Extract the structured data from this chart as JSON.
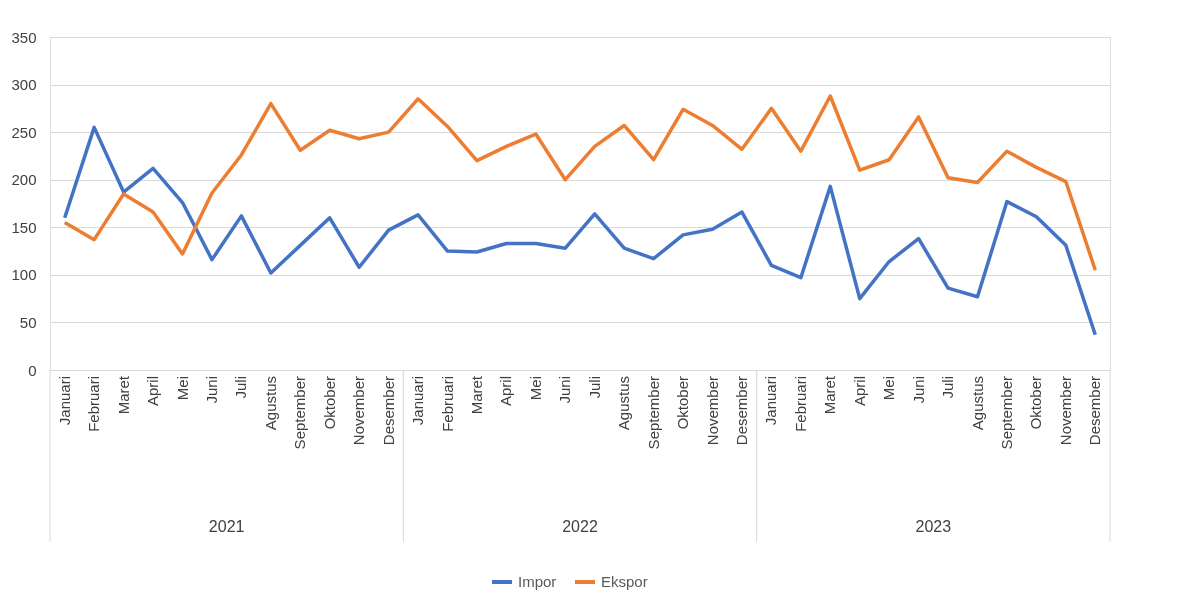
{
  "chart_data": {
    "type": "line",
    "categories": [
      "Januari",
      "Februari",
      "Maret",
      "April",
      "Mei",
      "Juni",
      "Juli",
      "Agustus",
      "September",
      "Oktober",
      "November",
      "Desember",
      "Januari",
      "Februari",
      "Maret",
      "April",
      "Mei",
      "Juni",
      "Juli",
      "Agustus",
      "September",
      "Oktober",
      "November",
      "Desember",
      "Januari",
      "Februari",
      "Maret",
      "April",
      "Mei",
      "Juni",
      "Juli",
      "Agustus",
      "September",
      "Oktober",
      "November",
      "Desember"
    ],
    "series": [
      {
        "name": "Impor",
        "color": "#4472c4",
        "values": [
          160,
          255,
          187,
          212,
          176,
          116,
          162,
          102,
          131,
          160,
          108,
          147,
          163,
          125,
          124,
          133,
          133,
          128,
          164,
          128,
          117,
          142,
          148,
          166,
          110,
          97,
          193,
          75,
          114,
          138,
          86,
          77,
          177,
          161,
          131,
          37
        ]
      },
      {
        "name": "Ekspor",
        "color": "#ed7d31",
        "values": [
          155,
          137,
          185,
          166,
          122,
          186,
          226,
          280,
          231,
          252,
          243,
          250,
          285,
          256,
          220,
          235,
          248,
          200,
          235,
          257,
          221,
          274,
          257,
          232,
          275,
          230,
          288,
          210,
          221,
          266,
          202,
          197,
          230,
          213,
          198,
          105
        ]
      }
    ],
    "annotations": [
      "2021",
      "2022",
      "2023"
    ],
    "ylim": [
      0,
      350
    ],
    "yticks": [
      0,
      50,
      100,
      150,
      200,
      250,
      300,
      350
    ],
    "grid": "y",
    "legend": "bottom",
    "line_style": "solid",
    "marker": "none"
  }
}
